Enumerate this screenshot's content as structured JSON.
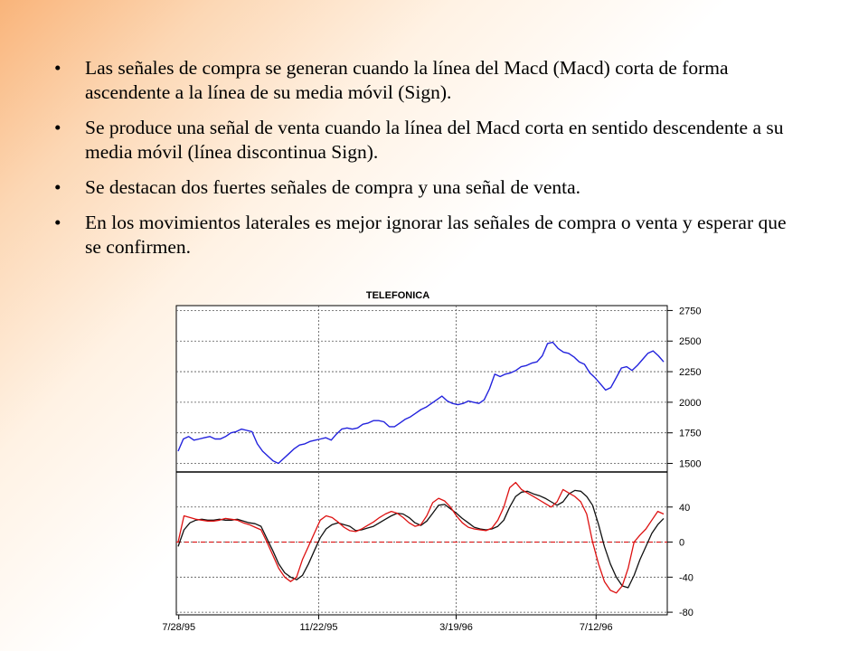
{
  "bullets": [
    {
      "text": "Las señales de compra se generan cuando la línea del Macd (Macd) corta de forma ascendente a la línea de su media móvil (Sign)."
    },
    {
      "text": "Se produce una señal de venta cuando la línea del Macd corta en sentido descendente a su media móvil (línea discontinua Sign)."
    },
    {
      "text": "Se destacan dos fuertes señales de compra y una señal de venta."
    },
    {
      "text": "En los movimientos laterales es mejor ignorar las señales de compra o venta y esperar que se confirmen."
    }
  ],
  "bullet_char": "•",
  "chart_data": {
    "type": "line",
    "title": "TELEFONICA",
    "x_tick_labels": [
      "7/28/95",
      "11/22/95",
      "3/19/96",
      "7/12/96"
    ],
    "grid": true,
    "colors": {
      "price": "#2222dd",
      "signal": "#dd1111",
      "macd": "#111111",
      "zero_line": "#dd1111",
      "grid": "#555555"
    },
    "price_panel": {
      "yticks": [
        1500,
        1750,
        2000,
        2250,
        2500,
        2750
      ],
      "ylim": [
        1430,
        2790
      ],
      "series": [
        {
          "values": [
            1600,
            1700,
            1720,
            1690,
            1700,
            1710,
            1720,
            1700,
            1700,
            1720,
            1750,
            1760,
            1780,
            1770,
            1760,
            1660,
            1600,
            1560,
            1520,
            1500,
            1540,
            1580,
            1620,
            1650,
            1660,
            1680,
            1690,
            1700,
            1710,
            1690,
            1740,
            1780,
            1790,
            1780,
            1790,
            1820,
            1830,
            1850,
            1850,
            1840,
            1800,
            1800,
            1830,
            1860,
            1880,
            1910,
            1940,
            1960,
            1990,
            2020,
            2050,
            2010,
            1990,
            1980,
            1990,
            2010,
            2000,
            1990,
            2020,
            2110,
            2230,
            2210,
            2230,
            2240,
            2260,
            2290,
            2300,
            2320,
            2330,
            2380,
            2480,
            2490,
            2440,
            2410,
            2400,
            2370,
            2330,
            2310,
            2240,
            2200,
            2150,
            2100,
            2120,
            2200,
            2280,
            2290,
            2260,
            2300,
            2350,
            2400,
            2420,
            2380,
            2330
          ]
        }
      ]
    },
    "macd_panel": {
      "yticks": [
        -80,
        -40,
        0,
        40
      ],
      "ylim": [
        -83,
        80
      ],
      "zero_line": 0,
      "series": [
        {
          "name": "Macd",
          "values": [
            -5,
            14,
            22,
            25,
            26,
            25,
            25,
            26,
            25,
            25,
            26,
            24,
            22,
            21,
            18,
            4,
            -10,
            -25,
            -35,
            -40,
            -43,
            -38,
            -25,
            -10,
            5,
            15,
            20,
            22,
            20,
            18,
            13,
            14,
            16,
            18,
            22,
            26,
            30,
            33,
            32,
            28,
            22,
            19,
            24,
            33,
            42,
            43,
            38,
            33,
            27,
            22,
            17,
            15,
            14,
            15,
            18,
            25,
            40,
            52,
            57,
            58,
            55,
            53,
            50,
            46,
            42,
            46,
            55,
            59,
            58,
            52,
            42,
            20,
            -5,
            -25,
            -40,
            -50,
            -52,
            -38,
            -20,
            -5,
            10,
            20,
            27
          ]
        },
        {
          "name": "Sign",
          "values": [
            0,
            30,
            28,
            26,
            25,
            24,
            24,
            25,
            27,
            26,
            25,
            22,
            20,
            17,
            14,
            0,
            -15,
            -30,
            -40,
            -45,
            -40,
            -20,
            -5,
            10,
            25,
            30,
            28,
            23,
            17,
            13,
            12,
            15,
            19,
            23,
            28,
            32,
            35,
            33,
            28,
            22,
            18,
            20,
            30,
            45,
            50,
            47,
            40,
            30,
            22,
            17,
            15,
            14,
            13,
            16,
            25,
            40,
            62,
            68,
            60,
            56,
            52,
            48,
            44,
            40,
            46,
            60,
            56,
            52,
            46,
            32,
            0,
            -25,
            -45,
            -55,
            -58,
            -50,
            -30,
            0,
            8,
            15,
            25,
            35,
            32
          ]
        }
      ]
    }
  }
}
